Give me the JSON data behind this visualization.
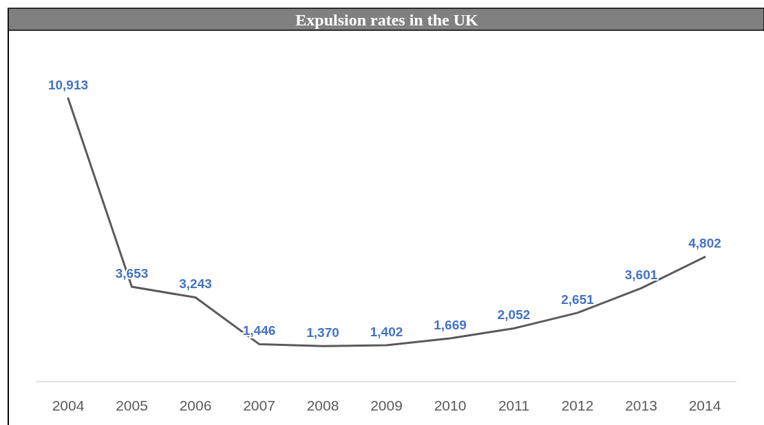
{
  "chart_data": {
    "type": "line",
    "title": "Expulsion rates in the UK",
    "categories": [
      "2004",
      "2005",
      "2006",
      "2007",
      "2008",
      "2009",
      "2010",
      "2011",
      "2012",
      "2013",
      "2014"
    ],
    "series": [
      {
        "color": "#595959",
        "values": [
          10913,
          3653,
          3243,
          1446,
          1370,
          1402,
          1669,
          2052,
          2651,
          3601,
          4802
        ],
        "value_labels": [
          "10,913",
          "3,653",
          "3,243",
          "1,446",
          "1,370",
          "1,402",
          "1,669",
          "2,052",
          "2,651",
          "3,601",
          "4,802"
        ]
      }
    ],
    "grid": false,
    "marker": "none",
    "line_style": "solid"
  }
}
